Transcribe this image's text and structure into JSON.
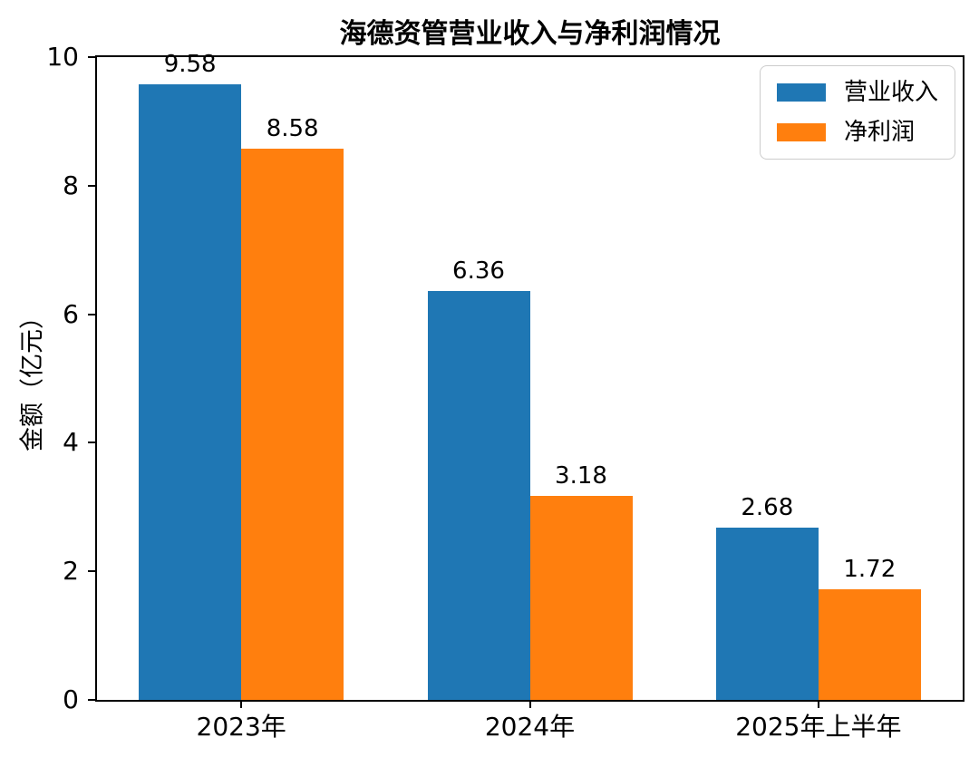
{
  "chart_data": {
    "type": "bar",
    "title": "海德资管营业收入与净利润情况",
    "ylabel": "金额（亿元）",
    "xlabel": "",
    "categories": [
      "2023年",
      "2024年",
      "2025年上半年"
    ],
    "series": [
      {
        "name": "营业收入",
        "color": "#1f77b4",
        "values": [
          9.58,
          6.36,
          2.68
        ]
      },
      {
        "name": "净利润",
        "color": "#ff7f0e",
        "values": [
          8.58,
          3.18,
          1.72
        ]
      }
    ],
    "bar_value_labels": {
      "营业收入": [
        "9.58",
        "6.36",
        "2.68"
      ],
      "净利润": [
        "8.58",
        "3.18",
        "1.72"
      ]
    },
    "ylim": [
      0,
      10
    ],
    "yticks": [
      "0",
      "2",
      "4",
      "6",
      "8",
      "10"
    ],
    "grid": false,
    "legend": {
      "position": "upper right",
      "entries": [
        "营业收入",
        "净利润"
      ]
    },
    "axis_color": "#000000",
    "background_color": "#ffffff"
  }
}
